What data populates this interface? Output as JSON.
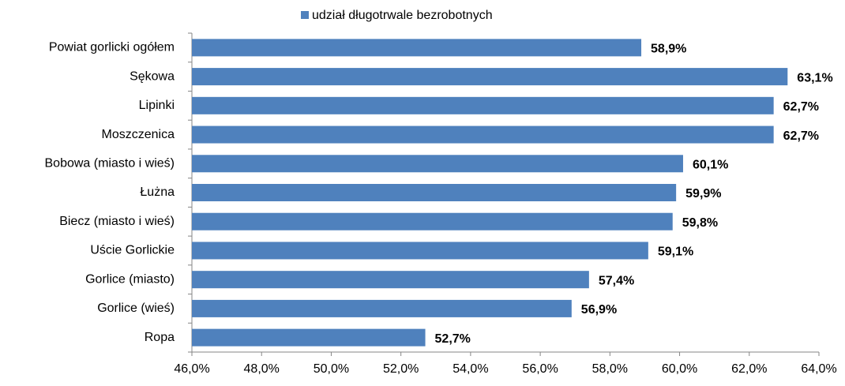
{
  "chart_data": {
    "type": "bar",
    "orientation": "horizontal",
    "series": [
      {
        "name": "udział długotrwale bezrobotnych",
        "color": "#4f81bd",
        "values": [
          58.9,
          63.1,
          62.7,
          62.7,
          60.1,
          59.9,
          59.8,
          59.1,
          57.4,
          56.9,
          52.7
        ],
        "value_labels": [
          "58,9%",
          "63,1%",
          "62,7%",
          "62,7%",
          "60,1%",
          "59,9%",
          "59,8%",
          "59,1%",
          "57,4%",
          "56,9%",
          "52,7%"
        ]
      }
    ],
    "categories": [
      "Powiat gorlicki ogółem",
      "Sękowa",
      "Lipinki",
      "Moszczenica",
      "Bobowa (miasto i wieś)",
      "Łużna",
      "Biecz (miasto i wieś)",
      "Uście Gorlickie",
      "Gorlice (miasto)",
      "Gorlice (wieś)",
      "Ropa"
    ],
    "xlim": [
      46,
      64
    ],
    "xticks": [
      {
        "value": 46,
        "label": "46,0%"
      },
      {
        "value": 48,
        "label": "48,0%"
      },
      {
        "value": 50,
        "label": "50,0%"
      },
      {
        "value": 52,
        "label": "52,0%"
      },
      {
        "value": 54,
        "label": "54,0%"
      },
      {
        "value": 56,
        "label": "56,0%"
      },
      {
        "value": 58,
        "label": "58,0%"
      },
      {
        "value": 60,
        "label": "60,0%"
      },
      {
        "value": 62,
        "label": "62,0%"
      },
      {
        "value": 64,
        "label": "64,0%"
      }
    ],
    "legend": "top",
    "grid": false
  }
}
